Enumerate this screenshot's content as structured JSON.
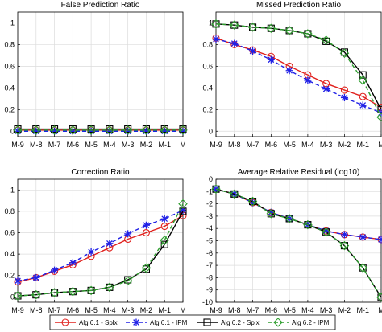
{
  "chart_data": [
    {
      "type": "line",
      "title": "False Prediction Ratio",
      "xlabel": "",
      "ylabel": "",
      "categories": [
        "M-9",
        "M-8",
        "M-7",
        "M-6",
        "M-5",
        "M-4",
        "M-3",
        "M-2",
        "M-1",
        "M"
      ],
      "ylim": [
        -0.05,
        1.1
      ],
      "yticks": [
        0,
        0.2,
        0.4,
        0.6,
        0.8,
        1
      ],
      "ytick_labels": [
        "0",
        "0.2",
        "0.4",
        "0.6",
        "0.8",
        "1"
      ],
      "grid": true,
      "series": [
        {
          "values": [
            0.01,
            0.01,
            0.01,
            0.01,
            0.01,
            0.01,
            0.01,
            0.01,
            0.01,
            0.01
          ]
        },
        {
          "values": [
            0.0,
            0.0,
            0.0,
            0.0,
            0.0,
            0.0,
            0.0,
            0.0,
            0.0,
            0.0
          ]
        },
        {
          "values": [
            0.02,
            0.02,
            0.02,
            0.02,
            0.02,
            0.02,
            0.02,
            0.02,
            0.02,
            0.02
          ]
        },
        {
          "values": [
            0.01,
            0.01,
            0.01,
            0.01,
            0.01,
            0.01,
            0.01,
            0.01,
            0.01,
            0.01
          ]
        }
      ]
    },
    {
      "type": "line",
      "title": "Missed Prediction Ratio",
      "xlabel": "",
      "ylabel": "",
      "categories": [
        "M-9",
        "M-8",
        "M-7",
        "M-6",
        "M-5",
        "M-4",
        "M-3",
        "M-2",
        "M-1",
        "M"
      ],
      "ylim": [
        -0.05,
        1.1
      ],
      "yticks": [
        0,
        0.2,
        0.4,
        0.6,
        0.8,
        1
      ],
      "ytick_labels": [
        "0",
        "0.2",
        "0.4",
        "0.6",
        "0.8",
        "1"
      ],
      "grid": true,
      "series": [
        {
          "values": [
            0.86,
            0.8,
            0.75,
            0.69,
            0.6,
            0.52,
            0.44,
            0.38,
            0.32,
            0.22
          ]
        },
        {
          "values": [
            0.85,
            0.81,
            0.74,
            0.66,
            0.56,
            0.47,
            0.39,
            0.31,
            0.24,
            0.17
          ]
        },
        {
          "values": [
            0.99,
            0.98,
            0.96,
            0.95,
            0.93,
            0.9,
            0.83,
            0.73,
            0.52,
            0.2
          ]
        },
        {
          "values": [
            0.99,
            0.98,
            0.96,
            0.95,
            0.93,
            0.9,
            0.84,
            0.72,
            0.47,
            0.13
          ]
        }
      ]
    },
    {
      "type": "line",
      "title": "Correction Ratio",
      "xlabel": "",
      "ylabel": "",
      "categories": [
        "M-9",
        "M-8",
        "M-7",
        "M-6",
        "M-5",
        "M-4",
        "M-3",
        "M-2",
        "M-1",
        "M"
      ],
      "ylim": [
        -0.05,
        1.1
      ],
      "yticks": [
        0,
        0.2,
        0.4,
        0.6,
        0.8,
        1
      ],
      "ytick_labels": [
        "0",
        "0.2",
        "0.4",
        "0.6",
        "0.8",
        "1"
      ],
      "grid": true,
      "series": [
        {
          "values": [
            0.14,
            0.18,
            0.24,
            0.3,
            0.38,
            0.46,
            0.54,
            0.6,
            0.66,
            0.76
          ]
        },
        {
          "values": [
            0.15,
            0.18,
            0.25,
            0.32,
            0.42,
            0.5,
            0.59,
            0.67,
            0.73,
            0.81
          ]
        },
        {
          "values": [
            0.01,
            0.02,
            0.04,
            0.05,
            0.06,
            0.09,
            0.16,
            0.26,
            0.49,
            0.8
          ]
        },
        {
          "values": [
            0.01,
            0.02,
            0.04,
            0.05,
            0.06,
            0.09,
            0.15,
            0.27,
            0.53,
            0.87
          ]
        }
      ]
    },
    {
      "type": "line",
      "title": "Average Relative Residual (log10)",
      "xlabel": "",
      "ylabel": "",
      "categories": [
        "M-9",
        "M-8",
        "M-7",
        "M-6",
        "M-5",
        "M-4",
        "M-3",
        "M-2",
        "M-1",
        "M"
      ],
      "ylim": [
        -10,
        0
      ],
      "yticks": [
        0,
        -1,
        -2,
        -3,
        -4,
        -5,
        -6,
        -7,
        -8,
        -9,
        -10
      ],
      "ytick_labels": [
        "0",
        "-1",
        "-2",
        "-3",
        "-4",
        "-5",
        "-6",
        "-7",
        "-8",
        "-9",
        "-10"
      ],
      "grid": true,
      "series": [
        {
          "values": [
            -0.8,
            -1.2,
            -1.9,
            -2.7,
            -3.2,
            -3.7,
            -4.2,
            -4.5,
            -4.7,
            -4.9
          ]
        },
        {
          "values": [
            -0.8,
            -1.2,
            -1.9,
            -2.7,
            -3.2,
            -3.7,
            -4.2,
            -4.5,
            -4.7,
            -4.9
          ]
        },
        {
          "values": [
            -0.8,
            -1.2,
            -1.8,
            -2.8,
            -3.2,
            -3.7,
            -4.3,
            -5.4,
            -7.2,
            -9.6
          ]
        },
        {
          "values": [
            -0.8,
            -1.2,
            -1.8,
            -2.8,
            -3.2,
            -3.7,
            -4.3,
            -5.4,
            -7.2,
            -9.6
          ]
        }
      ]
    }
  ],
  "legend": {
    "placement": "bottom",
    "items": [
      {
        "label": "Alg 6.1 - Splx",
        "color": "#e0201c",
        "marker": "circle",
        "dash": "solid"
      },
      {
        "label": "Alg 6.1 - IPM",
        "color": "#2020e6",
        "marker": "star",
        "dash": "dashed"
      },
      {
        "label": "Alg 6.2 - Splx",
        "color": "#000000",
        "marker": "square",
        "dash": "solid"
      },
      {
        "label": "Alg 6.2 - IPM",
        "color": "#2e9e2e",
        "marker": "diamond",
        "dash": "dashed"
      }
    ]
  }
}
